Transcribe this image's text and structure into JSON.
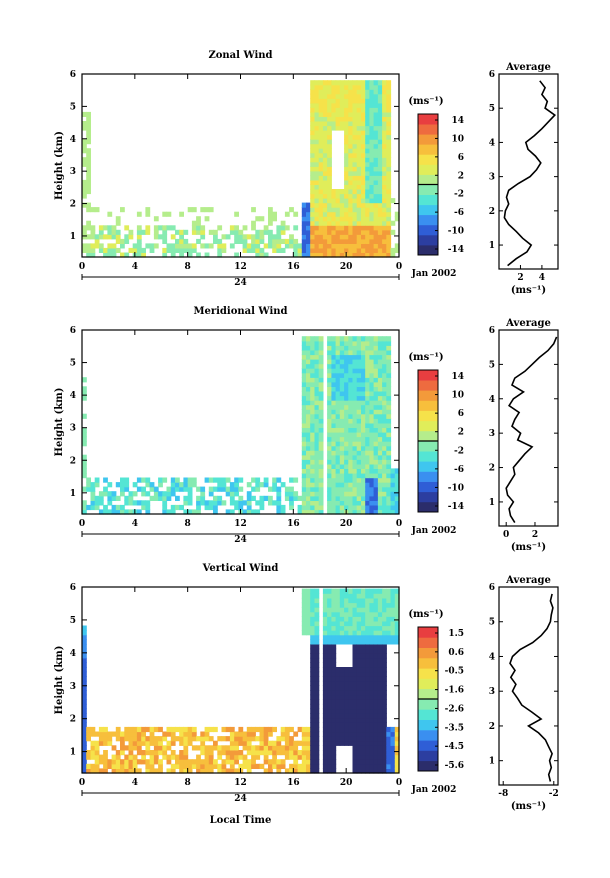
{
  "colors": {
    "wind_scale": [
      "#2b2d6b",
      "#2c3ea0",
      "#2f5ed6",
      "#3a8ff0",
      "#3fc6ef",
      "#54e5d4",
      "#86ebb1",
      "#b5ed8c",
      "#e0ed5a",
      "#f6e24a",
      "#f7bf3c",
      "#f39a3a",
      "#ee6b3f",
      "#e83e40"
    ],
    "vert_scale": [
      "#2b2d6b",
      "#2c3ea0",
      "#2f5ed6",
      "#3a8ff0",
      "#3fc6ef",
      "#54e5d4",
      "#86ebb1",
      "#b5ed8c",
      "#e0ed5a",
      "#f6e24a",
      "#f7bf3c",
      "#f39a3a",
      "#ee6b3f",
      "#e83e40"
    ]
  },
  "chart_data": [
    {
      "type": "heatmap",
      "title": "Zonal Wind",
      "ylabel": "Height (km)",
      "x_ticks": [
        "0",
        "4",
        "8",
        "12",
        "16",
        "20",
        "0"
      ],
      "y_ticks": [
        "1",
        "2",
        "3",
        "4",
        "5",
        "6"
      ],
      "ylim": [
        0.35,
        6
      ],
      "day_label": "24",
      "date_label": "Jan 2002",
      "colorbar": {
        "unit": "(ms⁻¹)",
        "ticks": [
          "14",
          "10",
          "6",
          "2",
          "-2",
          "-6",
          "-10",
          "-14"
        ],
        "range": [
          -14,
          14
        ]
      },
      "profile": {
        "title": "Average",
        "x_ticks": [
          "2",
          "4"
        ],
        "xlim": [
          0,
          5.5
        ],
        "xlabel": "(ms⁻¹)",
        "y_ticks": [
          "1",
          "2",
          "3",
          "4",
          "5",
          "6"
        ],
        "height": [
          0.4,
          0.6,
          0.8,
          1.0,
          1.2,
          1.4,
          1.6,
          1.8,
          2.0,
          2.2,
          2.4,
          2.6,
          2.8,
          3.0,
          3.2,
          3.4,
          3.6,
          3.8,
          4.0,
          4.2,
          4.4,
          4.6,
          4.8,
          5.0,
          5.2,
          5.4,
          5.6,
          5.8
        ],
        "value": [
          0.8,
          1.6,
          2.6,
          3.0,
          2.2,
          1.6,
          0.9,
          0.5,
          0.6,
          0.9,
          0.7,
          0.9,
          1.8,
          2.9,
          3.5,
          3.9,
          3.4,
          2.7,
          2.5,
          3.3,
          4.0,
          4.6,
          5.2,
          4.3,
          4.5,
          4.0,
          4.3,
          3.8
        ]
      }
    },
    {
      "type": "heatmap",
      "title": "Meridional Wind",
      "ylabel": "Height (km)",
      "x_ticks": [
        "0",
        "4",
        "8",
        "12",
        "16",
        "20",
        "0"
      ],
      "y_ticks": [
        "1",
        "2",
        "3",
        "4",
        "5",
        "6"
      ],
      "ylim": [
        0.35,
        6
      ],
      "day_label": "24",
      "date_label": "Jan 2002",
      "colorbar": {
        "unit": "(ms⁻¹)",
        "ticks": [
          "14",
          "10",
          "6",
          "2",
          "-2",
          "-6",
          "-10",
          "-14"
        ],
        "range": [
          -14,
          14
        ]
      },
      "profile": {
        "title": "Average",
        "x_ticks": [
          "0",
          "2"
        ],
        "xlim": [
          -0.5,
          3.6
        ],
        "xlabel": "(ms⁻¹)",
        "y_ticks": [
          "1",
          "2",
          "3",
          "4",
          "5",
          "6"
        ],
        "height": [
          0.4,
          0.6,
          0.8,
          1.0,
          1.2,
          1.4,
          1.6,
          1.8,
          2.0,
          2.2,
          2.4,
          2.6,
          2.8,
          3.0,
          3.2,
          3.4,
          3.6,
          3.8,
          4.0,
          4.2,
          4.4,
          4.6,
          4.8,
          5.0,
          5.2,
          5.4,
          5.6,
          5.8
        ],
        "value": [
          0.6,
          0.3,
          0.2,
          0.5,
          0.1,
          0.0,
          0.3,
          0.6,
          0.5,
          0.9,
          1.3,
          1.8,
          0.8,
          1.0,
          0.4,
          0.6,
          0.9,
          0.2,
          0.5,
          1.2,
          0.4,
          0.6,
          1.3,
          1.8,
          2.3,
          2.9,
          3.3,
          3.5
        ]
      }
    },
    {
      "type": "heatmap",
      "title": "Vertical Wind",
      "ylabel": "Height (km)",
      "xlabel": "Local Time",
      "x_ticks": [
        "0",
        "4",
        "8",
        "12",
        "16",
        "20",
        "0"
      ],
      "y_ticks": [
        "1",
        "2",
        "3",
        "4",
        "5",
        "6"
      ],
      "ylim": [
        0.35,
        6
      ],
      "day_label": "24",
      "date_label": "Jan 2002",
      "colorbar": {
        "unit": "(ms⁻¹)",
        "ticks": [
          "1.5",
          "0.6",
          "-0.5",
          "-1.6",
          "-2.6",
          "-3.5",
          "-4.5",
          "-5.6"
        ],
        "range": [
          -5.6,
          1.5
        ]
      },
      "profile": {
        "title": "Average",
        "x_ticks": [
          "-8",
          "-2"
        ],
        "xlim": [
          -8.5,
          -1.5
        ],
        "xlabel": "(ms⁻¹)",
        "y_ticks": [
          "1",
          "2",
          "3",
          "4",
          "5",
          "6"
        ],
        "height": [
          0.4,
          0.6,
          0.8,
          1.0,
          1.2,
          1.4,
          1.6,
          1.8,
          2.0,
          2.2,
          2.4,
          2.6,
          2.8,
          3.0,
          3.2,
          3.4,
          3.6,
          3.8,
          4.0,
          4.2,
          4.4,
          4.6,
          4.8,
          5.0,
          5.2,
          5.4,
          5.6,
          5.8
        ],
        "value": [
          -2.4,
          -2.6,
          -2.3,
          -2.5,
          -2.2,
          -2.6,
          -3.0,
          -3.8,
          -5.0,
          -3.5,
          -4.6,
          -5.8,
          -6.3,
          -6.9,
          -6.5,
          -7.1,
          -6.6,
          -7.2,
          -6.9,
          -6.0,
          -4.5,
          -3.5,
          -2.8,
          -2.4,
          -2.3,
          -2.1,
          -2.4,
          -2.2
        ]
      }
    }
  ]
}
